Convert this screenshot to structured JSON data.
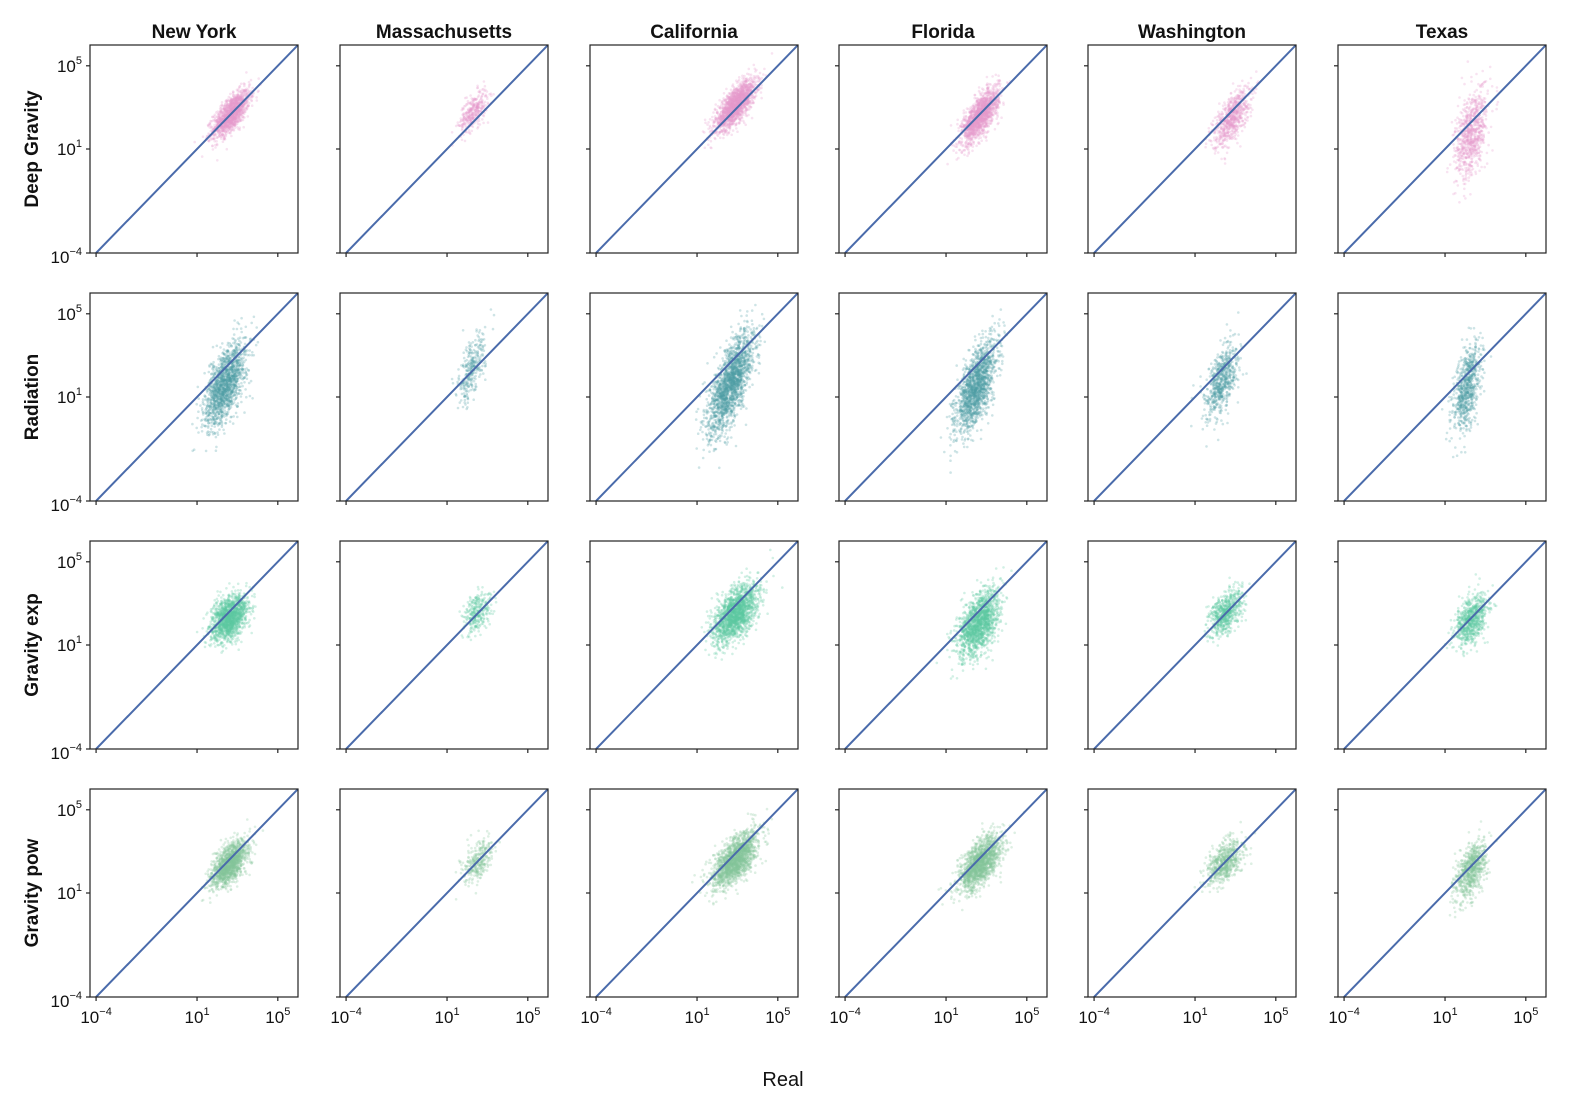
{
  "chart_data": {
    "type": "scatter",
    "title": "",
    "xlabel": "Real",
    "ylabel": "",
    "scale": "log",
    "xlim": [
      5e-05,
      1000000
    ],
    "ylim": [
      0.0001,
      1000000
    ],
    "x_ticks": [
      {
        "base": "10",
        "exp": "−4",
        "value": 0.0001
      },
      {
        "base": "10",
        "exp": "1",
        "value": 10
      },
      {
        "base": "10",
        "exp": "5",
        "value": 100000
      }
    ],
    "y_ticks": [
      {
        "base": "10",
        "exp": "5",
        "value": 100000
      },
      {
        "base": "10",
        "exp": "1",
        "value": 10
      },
      {
        "base": "10",
        "exp": "−4",
        "value": 0.0001
      }
    ],
    "reference_line": {
      "type": "identity",
      "color": "#4a6bab"
    },
    "columns": [
      "New York",
      "Massachusetts",
      "California",
      "Florida",
      "Washington",
      "Texas"
    ],
    "rows": [
      {
        "name": "Deep Gravity",
        "color": "#e59ccb"
      },
      {
        "name": "Radiation",
        "color": "#4f9ea6"
      },
      {
        "name": "Gravity exp",
        "color": "#5cc9a0"
      },
      {
        "name": "Gravity pow",
        "color": "#86c49c"
      }
    ],
    "clouds": [
      [
        {
          "cx": 2.7,
          "cy": 2.7,
          "sx": 0.45,
          "sy": 0.55,
          "corr": 0.7,
          "n": 1400
        },
        {
          "cx": 2.3,
          "cy": 2.8,
          "sx": 0.35,
          "sy": 0.5,
          "corr": 0.6,
          "n": 350
        },
        {
          "cx": 2.9,
          "cy": 3.1,
          "sx": 0.5,
          "sy": 0.6,
          "corr": 0.75,
          "n": 1700
        },
        {
          "cx": 2.7,
          "cy": 2.6,
          "sx": 0.45,
          "sy": 0.65,
          "corr": 0.7,
          "n": 1500
        },
        {
          "cx": 2.8,
          "cy": 2.5,
          "sx": 0.45,
          "sy": 0.7,
          "corr": 0.65,
          "n": 700
        },
        {
          "cx": 2.3,
          "cy": 1.7,
          "sx": 0.4,
          "sy": 1.1,
          "corr": 0.45,
          "n": 800
        }
      ],
      [
        {
          "cx": 2.4,
          "cy": 1.6,
          "sx": 0.5,
          "sy": 1.0,
          "corr": 0.6,
          "n": 1500
        },
        {
          "cx": 2.2,
          "cy": 2.3,
          "sx": 0.35,
          "sy": 0.8,
          "corr": 0.6,
          "n": 300
        },
        {
          "cx": 2.7,
          "cy": 1.7,
          "sx": 0.55,
          "sy": 1.2,
          "corr": 0.7,
          "n": 1900
        },
        {
          "cx": 2.5,
          "cy": 1.5,
          "sx": 0.5,
          "sy": 1.1,
          "corr": 0.65,
          "n": 1600
        },
        {
          "cx": 2.3,
          "cy": 1.7,
          "sx": 0.4,
          "sy": 0.9,
          "corr": 0.55,
          "n": 650
        },
        {
          "cx": 2.1,
          "cy": 1.4,
          "sx": 0.35,
          "sy": 1.1,
          "corr": 0.5,
          "n": 750
        }
      ],
      [
        {
          "cx": 2.6,
          "cy": 2.3,
          "sx": 0.45,
          "sy": 0.55,
          "corr": 0.45,
          "n": 1500
        },
        {
          "cx": 2.5,
          "cy": 2.6,
          "sx": 0.35,
          "sy": 0.5,
          "corr": 0.4,
          "n": 300
        },
        {
          "cx": 2.9,
          "cy": 2.5,
          "sx": 0.55,
          "sy": 0.7,
          "corr": 0.55,
          "n": 1800
        },
        {
          "cx": 2.6,
          "cy": 2.0,
          "sx": 0.5,
          "sy": 0.8,
          "corr": 0.5,
          "n": 1600
        },
        {
          "cx": 2.5,
          "cy": 2.5,
          "sx": 0.4,
          "sy": 0.55,
          "corr": 0.45,
          "n": 650
        },
        {
          "cx": 2.3,
          "cy": 2.2,
          "sx": 0.4,
          "sy": 0.6,
          "corr": 0.4,
          "n": 750
        }
      ],
      [
        {
          "cx": 2.6,
          "cy": 2.4,
          "sx": 0.45,
          "sy": 0.55,
          "corr": 0.6,
          "n": 1400
        },
        {
          "cx": 2.5,
          "cy": 2.5,
          "sx": 0.35,
          "sy": 0.55,
          "corr": 0.5,
          "n": 300
        },
        {
          "cx": 2.9,
          "cy": 2.6,
          "sx": 0.55,
          "sy": 0.65,
          "corr": 0.65,
          "n": 1800
        },
        {
          "cx": 2.7,
          "cy": 2.4,
          "sx": 0.5,
          "sy": 0.65,
          "corr": 0.6,
          "n": 1600
        },
        {
          "cx": 2.5,
          "cy": 2.5,
          "sx": 0.45,
          "sy": 0.55,
          "corr": 0.5,
          "n": 650
        },
        {
          "cx": 2.3,
          "cy": 2.1,
          "sx": 0.4,
          "sy": 0.7,
          "corr": 0.5,
          "n": 750
        }
      ]
    ]
  }
}
